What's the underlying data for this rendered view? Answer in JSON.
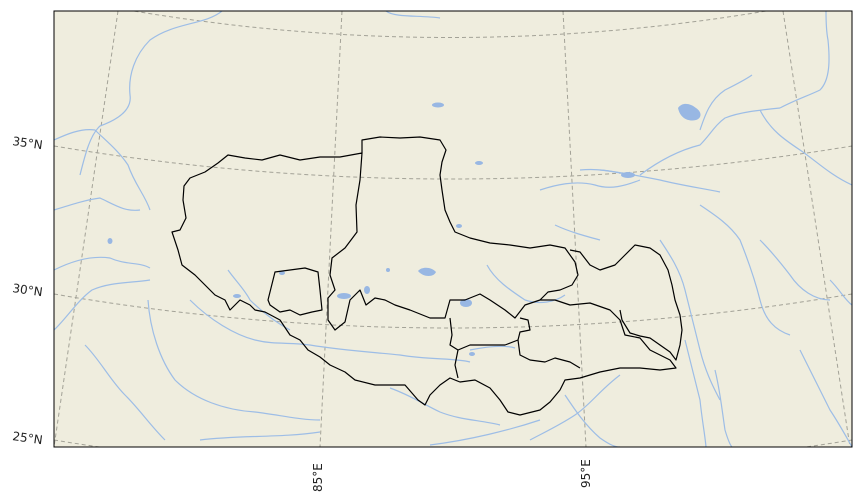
{
  "map": {
    "colors": {
      "land": "#efedde",
      "water": "#9dbde6",
      "river": "#9dbde6",
      "lake": "#98b7e3",
      "boundary": "#000000",
      "grid": "#a3a297",
      "frame": "#000000"
    },
    "lat_labels": [
      "35°N",
      "30°N",
      "25°N"
    ],
    "lon_labels": [
      "85°E",
      "95°E"
    ]
  }
}
